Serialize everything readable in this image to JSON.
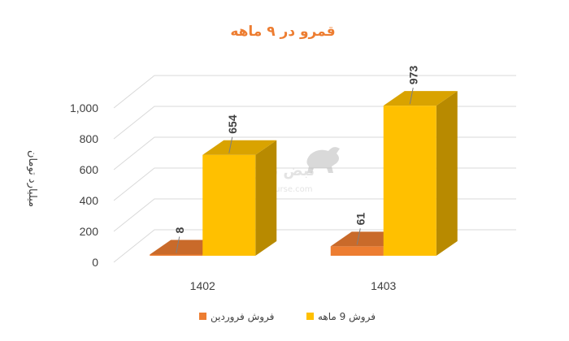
{
  "chart_data": {
    "type": "bar",
    "title": "قمرو در ۹ ماهه",
    "ylabel": "میلیارد تومان",
    "xlabel": "",
    "categories": [
      "1402",
      "1403"
    ],
    "series": [
      {
        "name": "فروش فروردین",
        "values": [
          8,
          61
        ],
        "color": "#ED7D31"
      },
      {
        "name": "فروش 9  ماهه",
        "values": [
          654,
          973
        ],
        "color": "#FFC000"
      }
    ],
    "ylim": [
      0,
      1000
    ],
    "yticks": [
      "0",
      "200",
      "400",
      "600",
      "800",
      "1,000"
    ],
    "grid": true,
    "legend": "bottom",
    "three_d": true
  },
  "watermark": {
    "logo": "نبض بورس",
    "url": "nabzebourse.com"
  }
}
